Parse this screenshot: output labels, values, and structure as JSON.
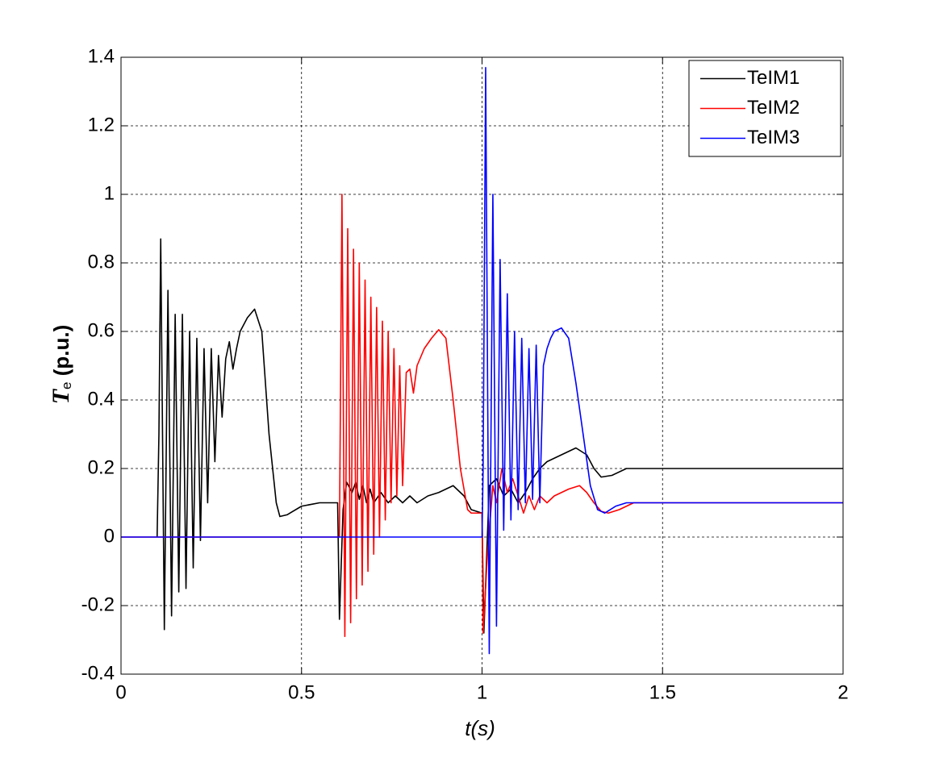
{
  "chart_data": {
    "type": "line",
    "xlabel": "t(s)",
    "ylabel": {
      "main": "T",
      "sub": "e",
      "rest": " (p.u.)"
    },
    "xlim": [
      0,
      2
    ],
    "ylim": [
      -0.4,
      1.4
    ],
    "xticks": [
      0,
      0.5,
      1,
      1.5,
      2
    ],
    "yticks": [
      -0.4,
      -0.2,
      0,
      0.2,
      0.4,
      0.6,
      0.8,
      1,
      1.2,
      1.4
    ],
    "grid": true,
    "legend": "upper right",
    "series": [
      {
        "name": "TeIM1",
        "color": "#000000",
        "x": [
          0.1,
          0.105,
          0.11,
          0.12,
          0.13,
          0.14,
          0.15,
          0.16,
          0.17,
          0.18,
          0.19,
          0.2,
          0.21,
          0.22,
          0.23,
          0.24,
          0.25,
          0.26,
          0.27,
          0.28,
          0.29,
          0.3,
          0.31,
          0.32,
          0.33,
          0.35,
          0.37,
          0.39,
          0.41,
          0.43,
          0.44,
          0.46,
          0.5,
          0.55,
          0.6,
          0.605,
          0.615,
          0.625,
          0.64,
          0.65,
          0.66,
          0.67,
          0.68,
          0.69,
          0.7,
          0.72,
          0.74,
          0.76,
          0.78,
          0.8,
          0.82,
          0.85,
          0.88,
          0.92,
          0.95,
          0.97,
          1.0,
          1.005,
          1.02,
          1.04,
          1.06,
          1.08,
          1.1,
          1.12,
          1.14,
          1.16,
          1.18,
          1.2,
          1.22,
          1.26,
          1.29,
          1.31,
          1.33,
          1.36,
          1.4,
          1.6,
          2
        ],
        "values": [
          0,
          0.3,
          0.87,
          -0.27,
          0.72,
          -0.23,
          0.65,
          -0.16,
          0.65,
          -0.15,
          0.6,
          -0.09,
          0.58,
          -0.01,
          0.55,
          0.1,
          0.55,
          0.22,
          0.53,
          0.35,
          0.52,
          0.57,
          0.49,
          0.55,
          0.6,
          0.64,
          0.665,
          0.6,
          0.3,
          0.1,
          0.06,
          0.065,
          0.09,
          0.1,
          0.1,
          -0.24,
          0.08,
          0.16,
          0.13,
          0.16,
          0.11,
          0.15,
          0.1,
          0.14,
          0.1,
          0.13,
          0.1,
          0.12,
          0.1,
          0.12,
          0.1,
          0.12,
          0.13,
          0.15,
          0.12,
          0.08,
          0.07,
          -0.28,
          0.15,
          0.17,
          0.12,
          0.14,
          0.1,
          0.13,
          0.17,
          0.2,
          0.22,
          0.23,
          0.24,
          0.26,
          0.24,
          0.2,
          0.175,
          0.18,
          0.2,
          0.2,
          0.2
        ]
      },
      {
        "name": "TeIM2",
        "color": "#ff0000",
        "x": [
          0,
          0.6,
          0.605,
          0.612,
          0.62,
          0.628,
          0.636,
          0.644,
          0.652,
          0.66,
          0.668,
          0.676,
          0.684,
          0.692,
          0.7,
          0.708,
          0.716,
          0.724,
          0.732,
          0.74,
          0.748,
          0.756,
          0.764,
          0.772,
          0.78,
          0.79,
          0.8,
          0.81,
          0.82,
          0.84,
          0.86,
          0.88,
          0.9,
          0.92,
          0.94,
          0.96,
          0.97,
          1.0,
          1.003,
          1.015,
          1.03,
          1.04,
          1.055,
          1.07,
          1.085,
          1.1,
          1.115,
          1.13,
          1.145,
          1.16,
          1.18,
          1.2,
          1.22,
          1.24,
          1.27,
          1.29,
          1.31,
          1.33,
          1.35,
          1.38,
          1.42,
          1.6,
          2
        ],
        "values": [
          0,
          0,
          0,
          1.0,
          -0.29,
          0.9,
          -0.25,
          0.84,
          -0.18,
          0.8,
          -0.14,
          0.75,
          -0.1,
          0.7,
          -0.05,
          0.67,
          0,
          0.63,
          0.05,
          0.6,
          0.1,
          0.55,
          0.12,
          0.5,
          0.15,
          0.48,
          0.49,
          0.42,
          0.5,
          0.55,
          0.58,
          0.605,
          0.58,
          0.4,
          0.2,
          0.08,
          0.07,
          0.07,
          -0.28,
          -0.05,
          0.15,
          0.1,
          0.2,
          0.13,
          0.17,
          0.12,
          0.07,
          0.12,
          0.08,
          0.12,
          0.1,
          0.12,
          0.13,
          0.14,
          0.15,
          0.13,
          0.1,
          0.075,
          0.07,
          0.08,
          0.1,
          0.1,
          0.1
        ]
      },
      {
        "name": "TeIM3",
        "color": "#0000ff",
        "x": [
          0,
          1.0,
          1.003,
          1.01,
          1.02,
          1.03,
          1.04,
          1.05,
          1.06,
          1.07,
          1.08,
          1.09,
          1.1,
          1.11,
          1.12,
          1.13,
          1.14,
          1.15,
          1.16,
          1.17,
          1.18,
          1.19,
          1.2,
          1.22,
          1.24,
          1.26,
          1.28,
          1.3,
          1.32,
          1.34,
          1.37,
          1.4,
          1.6,
          2
        ],
        "values": [
          0,
          0,
          0.2,
          1.37,
          -0.34,
          1.0,
          -0.26,
          0.81,
          0.02,
          0.71,
          0.05,
          0.6,
          0.08,
          0.58,
          0.1,
          0.55,
          0.11,
          0.56,
          0.1,
          0.5,
          0.55,
          0.58,
          0.6,
          0.61,
          0.58,
          0.45,
          0.3,
          0.15,
          0.08,
          0.07,
          0.09,
          0.1,
          0.1,
          0.1
        ]
      }
    ]
  }
}
